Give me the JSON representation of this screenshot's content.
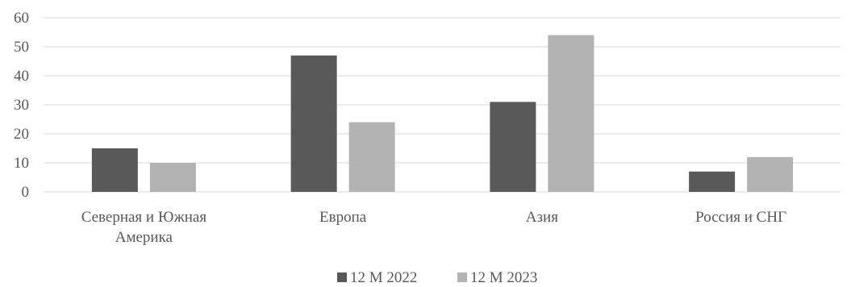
{
  "chart_data": {
    "type": "bar",
    "title": "",
    "xlabel": "",
    "ylabel": "",
    "ylim": [
      0,
      60
    ],
    "yticks": [
      0,
      10,
      20,
      30,
      40,
      50,
      60
    ],
    "grid": true,
    "legend": "bottom",
    "categories": [
      [
        "Северная и Южная",
        "Америка"
      ],
      [
        "Европа"
      ],
      [
        "Азия"
      ],
      [
        "Россия и СНГ"
      ]
    ],
    "series": [
      {
        "name": "12 М 2022",
        "color": "#595959",
        "values": [
          15,
          47,
          31,
          7
        ]
      },
      {
        "name": "12 М 2023",
        "color": "#b3b3b3",
        "values": [
          10,
          24,
          54,
          12
        ]
      }
    ]
  }
}
